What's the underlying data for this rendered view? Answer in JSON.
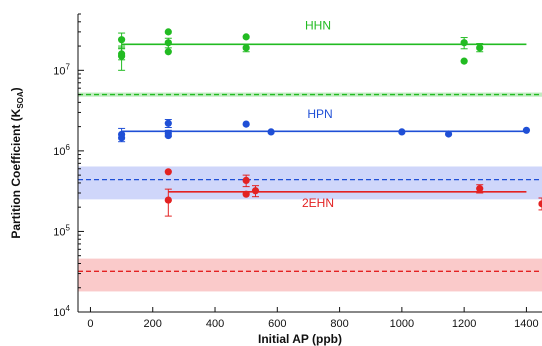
{
  "chart_data": {
    "type": "scatter",
    "xlabel": "Initial AP (ppb)",
    "ylabel": "Partition Coefficient (K",
    "ylabel_sub": "SOA",
    "ylabel_end": ")",
    "xlim": [
      -40,
      1450
    ],
    "ylim": [
      10000,
      50000000
    ],
    "yscale": "log",
    "xticks": [
      0,
      200,
      400,
      600,
      800,
      1000,
      1200,
      1400
    ],
    "ytick_labels": [
      {
        "base": "10",
        "exp": "4",
        "value": 10000
      },
      {
        "base": "10",
        "exp": "5",
        "value": 100000
      },
      {
        "base": "10",
        "exp": "6",
        "value": 1000000
      },
      {
        "base": "10",
        "exp": "7",
        "value": 10000000
      }
    ],
    "grid": false,
    "series": [
      {
        "name": "HHN",
        "color": "#22bb22",
        "fit_line": {
          "x": [
            100,
            1400
          ],
          "y": 21000000
        },
        "theory_line": {
          "y": 5000000,
          "band": [
            4700000,
            5300000
          ]
        },
        "points": [
          {
            "x": 100,
            "y": 24000000,
            "yerr": [
              19000000,
              29000000
            ]
          },
          {
            "x": 100,
            "y": 16000000,
            "yerr": [
              13500000,
              18500000
            ]
          },
          {
            "x": 100,
            "y": 15000000,
            "yerr": [
              10000000,
              20000000
            ]
          },
          {
            "x": 250,
            "y": 30000000
          },
          {
            "x": 250,
            "y": 22000000,
            "yerr": [
              19000000,
              25000000
            ]
          },
          {
            "x": 250,
            "y": 17000000
          },
          {
            "x": 500,
            "y": 26000000
          },
          {
            "x": 500,
            "y": 19000000,
            "yerr": [
              17000000,
              21000000
            ]
          },
          {
            "x": 1200,
            "y": 22000000,
            "yerr": [
              18500000,
              25500000
            ]
          },
          {
            "x": 1200,
            "y": 13000000
          },
          {
            "x": 1250,
            "y": 19000000,
            "yerr": [
              17000000,
              21500000
            ]
          }
        ]
      },
      {
        "name": "HPN",
        "color": "#1f4fd6",
        "fit_line": {
          "x": [
            100,
            1400
          ],
          "y": 1750000
        },
        "theory_line": {
          "y": 440000,
          "band": [
            250000,
            640000
          ]
        },
        "points": [
          {
            "x": 100,
            "y": 1600000,
            "yerr": [
              1300000,
              1900000
            ]
          },
          {
            "x": 100,
            "y": 1450000
          },
          {
            "x": 250,
            "y": 2200000,
            "yerr": [
              1950000,
              2450000
            ]
          },
          {
            "x": 250,
            "y": 1650000,
            "yerr": [
              1500000,
              1800000
            ]
          },
          {
            "x": 250,
            "y": 1550000
          },
          {
            "x": 500,
            "y": 2150000
          },
          {
            "x": 580,
            "y": 1720000
          },
          {
            "x": 1000,
            "y": 1720000
          },
          {
            "x": 1150,
            "y": 1620000
          },
          {
            "x": 1400,
            "y": 1800000
          }
        ]
      },
      {
        "name": "2EHN",
        "color": "#e32222",
        "fit_line": {
          "x": [
            250,
            1400
          ],
          "y": 310000
        },
        "theory_line": {
          "y": 32000.0,
          "band": [
            18000,
            46000
          ]
        },
        "points": [
          {
            "x": 250,
            "y": 550000
          },
          {
            "x": 250,
            "y": 245000,
            "yerr": [
              155000,
              335000
            ]
          },
          {
            "x": 500,
            "y": 430000,
            "yerr": [
              360000,
              500000
            ]
          },
          {
            "x": 500,
            "y": 290000
          },
          {
            "x": 530,
            "y": 320000,
            "yerr": [
              270000,
              370000
            ]
          },
          {
            "x": 1250,
            "y": 340000,
            "yerr": [
              300000,
              380000
            ]
          },
          {
            "x": 1450,
            "y": 220000,
            "yerr": [
              185000,
              260000
            ]
          }
        ]
      }
    ]
  }
}
